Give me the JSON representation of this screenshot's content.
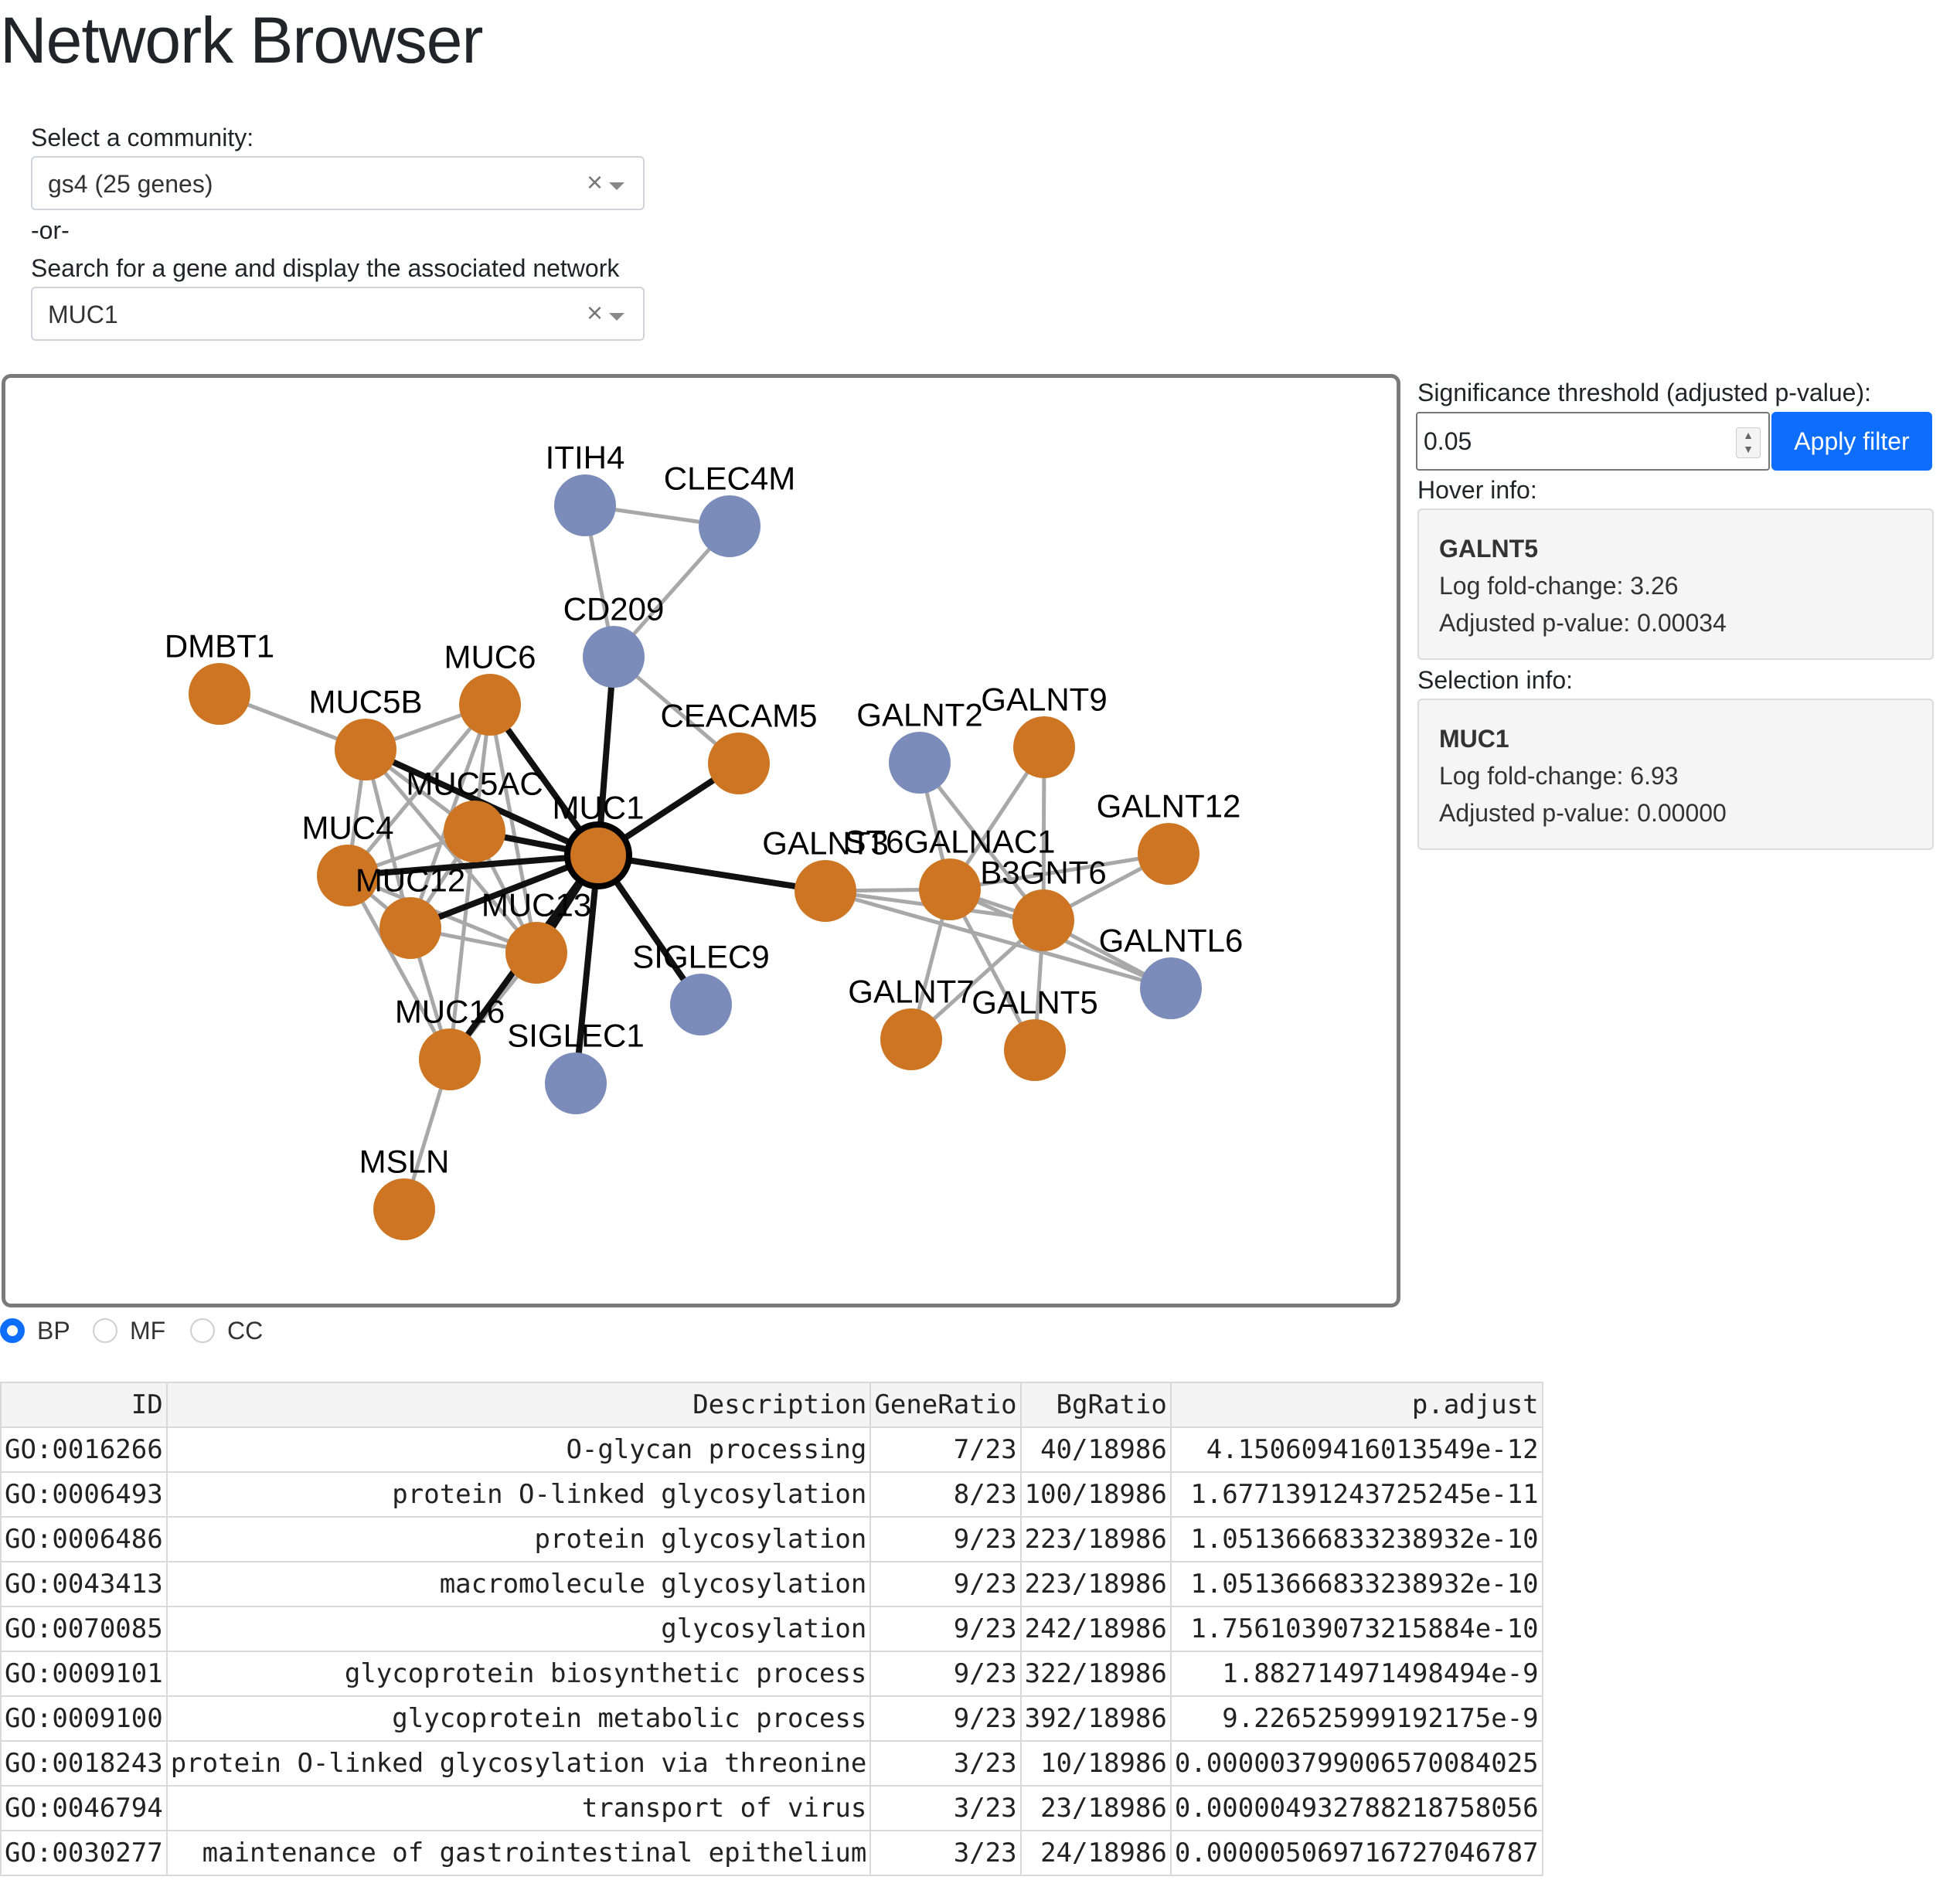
{
  "page_title": "Network Browser",
  "community": {
    "label": "Select a community:",
    "value": "gs4 (25 genes)"
  },
  "or_text": "-or-",
  "gene_search": {
    "label": "Search for a gene and display the associated network",
    "value": "MUC1"
  },
  "threshold": {
    "label": "Significance threshold (adjusted p-value):",
    "value": "0.05",
    "button": "Apply filter"
  },
  "hover_info": {
    "label": "Hover info:",
    "gene": "GALNT5",
    "logfc": "Log fold-change: 3.26",
    "padj": "Adjusted p-value: 0.00034"
  },
  "selection_info": {
    "label": "Selection info:",
    "gene": "MUC1",
    "logfc": "Log fold-change: 6.93",
    "padj": "Adjusted p-value: 0.00000"
  },
  "ontology_radio": {
    "options": [
      "BP",
      "MF",
      "CC"
    ],
    "selected": "BP"
  },
  "colors": {
    "upregulated_node": "#cd7522",
    "other_node": "#7b8cba",
    "primary_button": "#0d6efd"
  },
  "network": {
    "selected_node": "MUC1",
    "nodes": [
      {
        "id": "ITIH4",
        "group": "blue"
      },
      {
        "id": "CLEC4M",
        "group": "blue"
      },
      {
        "id": "CD209",
        "group": "blue"
      },
      {
        "id": "DMBT1",
        "group": "orange"
      },
      {
        "id": "MUC6",
        "group": "orange"
      },
      {
        "id": "MUC5B",
        "group": "orange"
      },
      {
        "id": "CEACAM5",
        "group": "orange"
      },
      {
        "id": "MUC5AC",
        "group": "orange"
      },
      {
        "id": "MUC1",
        "group": "orange"
      },
      {
        "id": "MUC4",
        "group": "orange"
      },
      {
        "id": "MUC12",
        "group": "orange"
      },
      {
        "id": "MUC13",
        "group": "orange"
      },
      {
        "id": "SIGLEC9",
        "group": "blue"
      },
      {
        "id": "MUC16",
        "group": "orange"
      },
      {
        "id": "SIGLEC1",
        "group": "blue"
      },
      {
        "id": "MSLN",
        "group": "orange"
      },
      {
        "id": "GALNT2",
        "group": "blue"
      },
      {
        "id": "GALNT9",
        "group": "orange"
      },
      {
        "id": "GALNT12",
        "group": "orange"
      },
      {
        "id": "GALNT3",
        "group": "orange"
      },
      {
        "id": "ST6GALNAC1",
        "group": "orange"
      },
      {
        "id": "B3GNT6",
        "group": "orange"
      },
      {
        "id": "GALNTL6",
        "group": "blue"
      },
      {
        "id": "GALNT7",
        "group": "orange"
      },
      {
        "id": "GALNT5",
        "group": "orange"
      }
    ]
  },
  "go_table": {
    "columns": [
      "ID",
      "Description",
      "GeneRatio",
      "BgRatio",
      "p.adjust"
    ],
    "rows": [
      [
        "GO:0016266",
        "O-glycan processing",
        "7/23",
        "40/18986",
        "4.150609416013549e-12"
      ],
      [
        "GO:0006493",
        "protein O-linked glycosylation",
        "8/23",
        "100/18986",
        "1.6771391243725245e-11"
      ],
      [
        "GO:0006486",
        "protein glycosylation",
        "9/23",
        "223/18986",
        "1.0513666833238932e-10"
      ],
      [
        "GO:0043413",
        "macromolecule glycosylation",
        "9/23",
        "223/18986",
        "1.0513666833238932e-10"
      ],
      [
        "GO:0070085",
        "glycosylation",
        "9/23",
        "242/18986",
        "1.7561039073215884e-10"
      ],
      [
        "GO:0009101",
        "glycoprotein biosynthetic process",
        "9/23",
        "322/18986",
        "1.882714971498494e-9"
      ],
      [
        "GO:0009100",
        "glycoprotein metabolic process",
        "9/23",
        "392/18986",
        "9.226525999192175e-9"
      ],
      [
        "GO:0018243",
        "protein O-linked glycosylation via threonine",
        "3/23",
        "10/18986",
        "0.000003799006570084025"
      ],
      [
        "GO:0046794",
        "transport of virus",
        "3/23",
        "23/18986",
        "0.000004932788218758056"
      ],
      [
        "GO:0030277",
        "maintenance of gastrointestinal epithelium",
        "3/23",
        "24/18986",
        "0.000005069716727046787"
      ]
    ]
  }
}
